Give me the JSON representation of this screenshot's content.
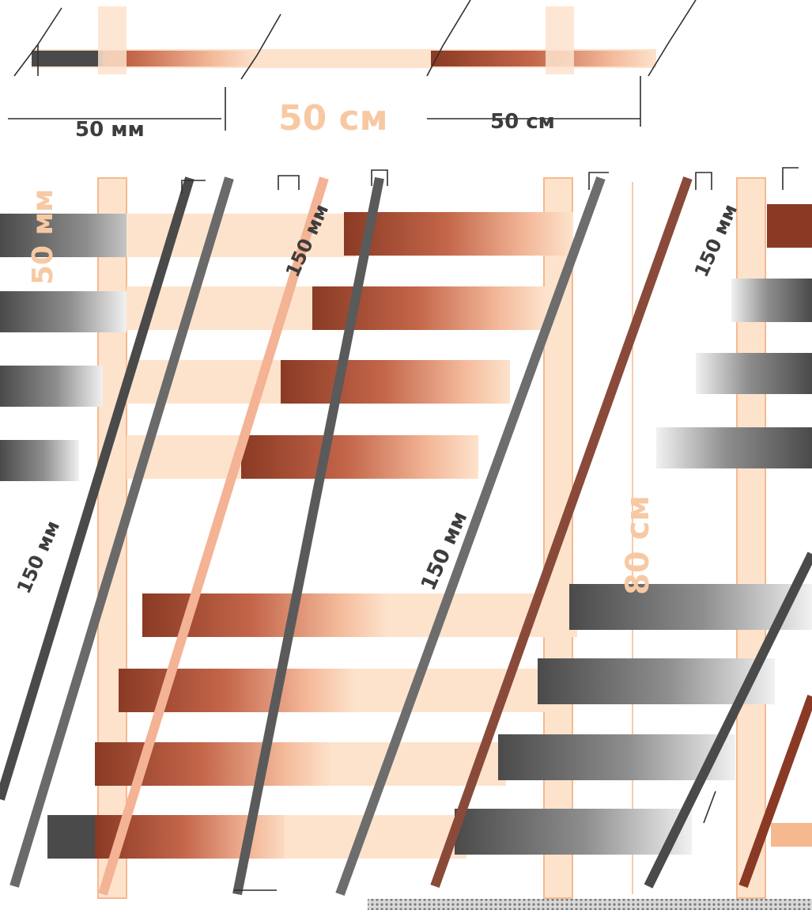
{
  "labels": {
    "top_left": "50 мм",
    "top_center": "50 см",
    "top_right": "50 см",
    "left_vertical": "50 мм",
    "slat_diag_1": "150 мм",
    "slat_diag_2": "150 мм",
    "left_diag": "150 мм",
    "center_diag": "150 мм",
    "right_vertical": "80 см"
  },
  "colors": {
    "wood_light": "#fde3cc",
    "wood_mid": "#f6b98f",
    "wood_dark": "#8a3a24",
    "wire_dark": "#454545",
    "label_light": "#f7c9a3"
  }
}
